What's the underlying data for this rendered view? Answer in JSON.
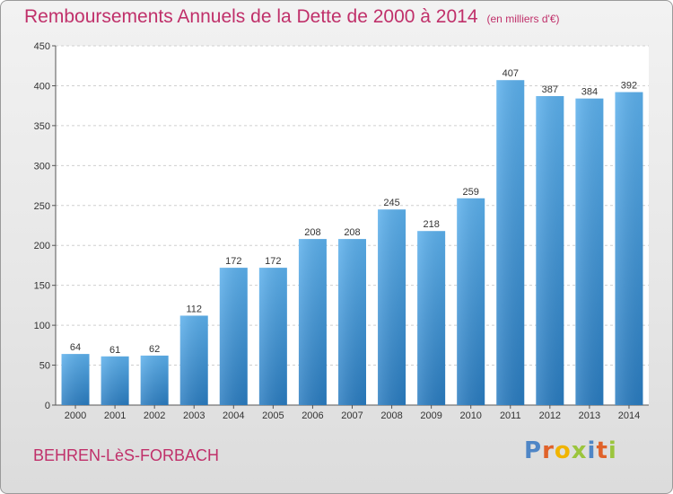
{
  "page": {
    "title": "Remboursements Annuels de la Dette de 2000 à 2014",
    "unit": "(en milliers d'€)",
    "commune": "BEHREN-LèS-FORBACH",
    "logo": "Proxiti"
  },
  "chart_data": {
    "type": "bar",
    "title": "Remboursements Annuels de la Dette de 2000 à 2014",
    "subtitle": "(en milliers d'€)",
    "xlabel": "",
    "ylabel": "",
    "categories": [
      "2000",
      "2001",
      "2002",
      "2003",
      "2004",
      "2005",
      "2006",
      "2007",
      "2008",
      "2009",
      "2010",
      "2011",
      "2012",
      "2013",
      "2014"
    ],
    "values": [
      64,
      61,
      62,
      112,
      172,
      172,
      208,
      208,
      245,
      218,
      259,
      407,
      387,
      384,
      392
    ],
    "ylim": [
      0,
      450
    ],
    "yticks": [
      0,
      50,
      100,
      150,
      200,
      250,
      300,
      350,
      400,
      450
    ],
    "grid": true,
    "bar_color": "#3d8fd4"
  }
}
